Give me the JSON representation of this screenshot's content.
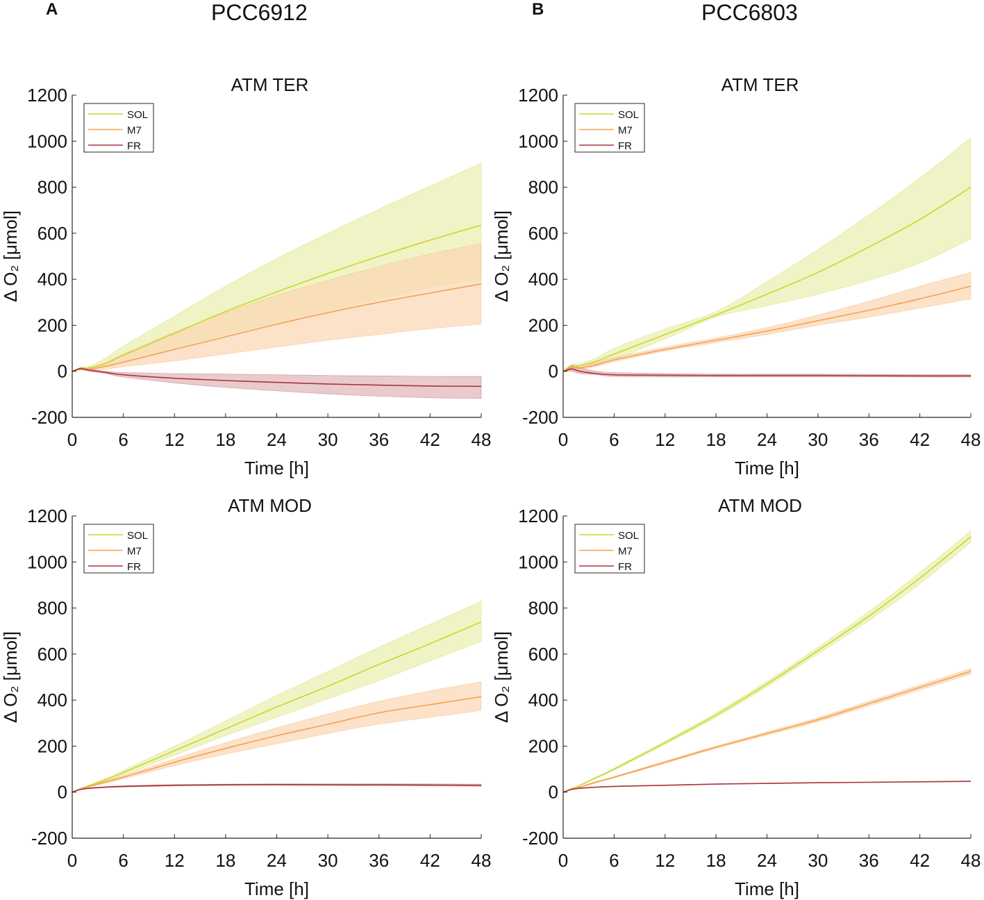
{
  "figure": {
    "panel_labels": [
      "A",
      "B"
    ],
    "column_titles": [
      "PCC6912",
      "PCC6803"
    ]
  },
  "colors": {
    "SOL": "#c8d82a",
    "M7": "#f5a150",
    "FR": "#a8353c",
    "SOL_band": "#eaeeae",
    "M7_band": "#fbd6b2",
    "FR_band": "#dfb5b9",
    "axis": "#262626"
  },
  "chart_data": [
    {
      "type": "line",
      "strain": "PCC6912",
      "title": "ATM TER",
      "xlabel": "Time [h]",
      "ylabel": "Δ O₂ [μmol]",
      "xlim": [
        0,
        48
      ],
      "ylim": [
        -200,
        1200
      ],
      "xticks": [
        0,
        6,
        12,
        18,
        24,
        30,
        36,
        42,
        48
      ],
      "yticks": [
        -200,
        0,
        200,
        400,
        600,
        800,
        1000,
        1200
      ],
      "legend": "top-left",
      "x": [
        0,
        1,
        2,
        4,
        6,
        12,
        18,
        24,
        30,
        36,
        42,
        48
      ],
      "series": [
        {
          "name": "SOL",
          "mean": [
            0,
            12,
            15,
            35,
            70,
            165,
            260,
            345,
            425,
            500,
            570,
            635
          ],
          "upper": [
            0,
            18,
            22,
            60,
            110,
            240,
            370,
            490,
            600,
            705,
            805,
            905
          ],
          "lower": [
            0,
            8,
            8,
            20,
            40,
            100,
            160,
            215,
            265,
            315,
            365,
            400
          ]
        },
        {
          "name": "M7",
          "mean": [
            0,
            10,
            10,
            22,
            40,
            95,
            150,
            205,
            255,
            300,
            340,
            380
          ],
          "upper": [
            0,
            15,
            15,
            40,
            75,
            170,
            255,
            330,
            395,
            455,
            510,
            555
          ],
          "lower": [
            0,
            5,
            5,
            10,
            20,
            45,
            75,
            105,
            135,
            160,
            185,
            205
          ]
        },
        {
          "name": "FR",
          "mean": [
            0,
            12,
            5,
            -5,
            -15,
            -30,
            -40,
            -48,
            -55,
            -60,
            -64,
            -65
          ],
          "upper": [
            0,
            15,
            10,
            0,
            -5,
            -10,
            -12,
            -15,
            -18,
            -20,
            -22,
            -22
          ],
          "lower": [
            0,
            8,
            0,
            -10,
            -25,
            -50,
            -70,
            -85,
            -98,
            -108,
            -115,
            -118
          ]
        }
      ]
    },
    {
      "type": "line",
      "strain": "PCC6803",
      "title": "ATM TER",
      "xlabel": "Time [h]",
      "ylabel": "Δ O₂ [μmol]",
      "xlim": [
        0,
        48
      ],
      "ylim": [
        -200,
        1200
      ],
      "xticks": [
        0,
        6,
        12,
        18,
        24,
        30,
        36,
        42,
        48
      ],
      "yticks": [
        -200,
        0,
        200,
        400,
        600,
        800,
        1000,
        1200
      ],
      "legend": "top-left",
      "x": [
        0,
        1,
        2,
        4,
        6,
        12,
        18,
        24,
        30,
        36,
        42,
        48
      ],
      "series": [
        {
          "name": "SOL",
          "mean": [
            0,
            20,
            25,
            45,
            75,
            160,
            245,
            335,
            430,
            540,
            660,
            800
          ],
          "upper": [
            0,
            30,
            35,
            60,
            100,
            185,
            260,
            390,
            530,
            680,
            840,
            1015
          ],
          "lower": [
            0,
            12,
            15,
            30,
            50,
            140,
            235,
            285,
            335,
            395,
            470,
            575
          ]
        },
        {
          "name": "M7",
          "mean": [
            0,
            15,
            15,
            30,
            50,
            95,
            135,
            175,
            220,
            265,
            315,
            370
          ],
          "upper": [
            0,
            25,
            25,
            40,
            60,
            105,
            145,
            190,
            245,
            305,
            370,
            430
          ],
          "lower": [
            0,
            8,
            8,
            22,
            42,
            88,
            125,
            160,
            200,
            235,
            275,
            315
          ]
        },
        {
          "name": "FR",
          "mean": [
            0,
            10,
            0,
            -10,
            -15,
            -17,
            -18,
            -18,
            -18,
            -19,
            -20,
            -20
          ],
          "upper": [
            0,
            25,
            15,
            0,
            -5,
            -10,
            -12,
            -12,
            -12,
            -13,
            -14,
            -15
          ],
          "lower": [
            0,
            0,
            -10,
            -15,
            -22,
            -24,
            -24,
            -24,
            -24,
            -24,
            -25,
            -25
          ]
        }
      ]
    },
    {
      "type": "line",
      "strain": "PCC6912",
      "title": "ATM MOD",
      "xlabel": "Time [h]",
      "ylabel": "Δ O₂ [μmol]",
      "xlim": [
        0,
        48
      ],
      "ylim": [
        -200,
        1200
      ],
      "xticks": [
        0,
        6,
        12,
        18,
        24,
        30,
        36,
        42,
        48
      ],
      "yticks": [
        -200,
        0,
        200,
        400,
        600,
        800,
        1000,
        1200
      ],
      "legend": "top-left",
      "x": [
        0,
        1,
        2,
        4,
        6,
        12,
        18,
        24,
        30,
        36,
        42,
        48
      ],
      "series": [
        {
          "name": "SOL",
          "mean": [
            0,
            15,
            28,
            55,
            85,
            180,
            275,
            370,
            460,
            555,
            645,
            740
          ],
          "upper": [
            0,
            16,
            32,
            62,
            95,
            200,
            310,
            420,
            525,
            630,
            730,
            830
          ],
          "lower": [
            0,
            14,
            25,
            50,
            75,
            160,
            245,
            325,
            405,
            485,
            570,
            655
          ]
        },
        {
          "name": "M7",
          "mean": [
            0,
            15,
            25,
            45,
            65,
            130,
            190,
            245,
            295,
            345,
            380,
            415
          ],
          "upper": [
            0,
            16,
            28,
            50,
            72,
            145,
            215,
            280,
            340,
            395,
            440,
            480
          ],
          "lower": [
            0,
            14,
            22,
            40,
            58,
            115,
            165,
            210,
            255,
            295,
            325,
            355
          ]
        },
        {
          "name": "FR",
          "mean": [
            0,
            12,
            17,
            22,
            25,
            30,
            32,
            33,
            32,
            32,
            31,
            30
          ],
          "upper": [
            0,
            13,
            19,
            24,
            28,
            33,
            35,
            36,
            36,
            36,
            36,
            35
          ],
          "lower": [
            0,
            11,
            15,
            20,
            22,
            27,
            29,
            30,
            29,
            28,
            27,
            25
          ]
        }
      ]
    },
    {
      "type": "line",
      "strain": "PCC6803",
      "title": "ATM MOD",
      "xlabel": "Time [h]",
      "ylabel": "Δ O₂ [μmol]",
      "xlim": [
        0,
        48
      ],
      "ylim": [
        -200,
        1200
      ],
      "xticks": [
        0,
        6,
        12,
        18,
        24,
        30,
        36,
        42,
        48
      ],
      "yticks": [
        -200,
        0,
        200,
        400,
        600,
        800,
        1000,
        1200
      ],
      "legend": "top-left",
      "x": [
        0,
        1,
        2,
        4,
        6,
        12,
        18,
        24,
        30,
        36,
        42,
        48
      ],
      "series": [
        {
          "name": "SOL",
          "mean": [
            0,
            15,
            30,
            65,
            100,
            215,
            335,
            470,
            615,
            765,
            930,
            1110
          ],
          "upper": [
            0,
            16,
            32,
            68,
            104,
            222,
            345,
            482,
            630,
            785,
            955,
            1135
          ],
          "lower": [
            0,
            14,
            28,
            62,
            96,
            208,
            325,
            458,
            600,
            745,
            905,
            1085
          ]
        },
        {
          "name": "M7",
          "mean": [
            0,
            12,
            22,
            45,
            65,
            130,
            195,
            255,
            315,
            385,
            455,
            525
          ],
          "upper": [
            0,
            13,
            24,
            48,
            68,
            135,
            200,
            262,
            324,
            395,
            466,
            537
          ],
          "lower": [
            0,
            11,
            20,
            42,
            62,
            125,
            190,
            248,
            306,
            375,
            444,
            513
          ]
        },
        {
          "name": "FR",
          "mean": [
            0,
            12,
            17,
            22,
            25,
            30,
            35,
            38,
            41,
            43,
            45,
            47
          ],
          "upper": [
            0,
            13,
            18,
            23,
            26,
            31,
            36,
            39,
            42,
            44,
            46,
            48
          ],
          "lower": [
            0,
            11,
            16,
            21,
            24,
            29,
            34,
            37,
            40,
            42,
            44,
            46
          ]
        }
      ]
    }
  ]
}
